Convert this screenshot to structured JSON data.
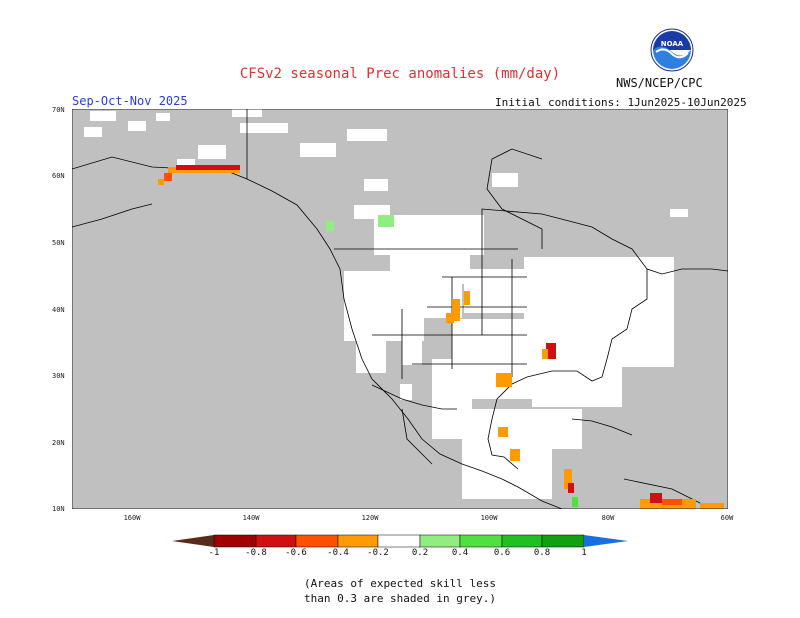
{
  "title": "CFSv2 seasonal Prec anomalies (mm/day)",
  "season": "Sep-Oct-Nov 2025",
  "initial_conditions": "Initial conditions: 1Jun2025-10Jun2025",
  "agency": "NWS/NCEP/CPC",
  "logo_text": "NOAA",
  "map": {
    "lat_labels": [
      "70N",
      "60N",
      "50N",
      "40N",
      "30N",
      "20N",
      "10N"
    ],
    "lon_labels": [
      "160W",
      "140W",
      "120W",
      "100W",
      "80W",
      "60W"
    ],
    "lat_range": [
      10,
      70
    ],
    "lon_range": [
      -170,
      -60
    ],
    "grey_meaning": "low skill",
    "colors": {
      "grey": "#c0c0c0",
      "land_line": "#000000"
    }
  },
  "colorbar": {
    "labels": [
      "-1",
      "-0.8",
      "-0.6",
      "-0.4",
      "-0.2",
      "0.2",
      "0.4",
      "0.6",
      "0.8",
      "1"
    ],
    "colors": [
      "#5a2a1a",
      "#a00000",
      "#d01010",
      "#ff5000",
      "#ff9a00",
      "#ffffff",
      "#90ee80",
      "#50e040",
      "#20c020",
      "#10a010",
      "#1870e0"
    ]
  },
  "note_line1": "(Areas of expected skill less",
  "note_line2": "than 0.3 are shaded in grey.)"
}
